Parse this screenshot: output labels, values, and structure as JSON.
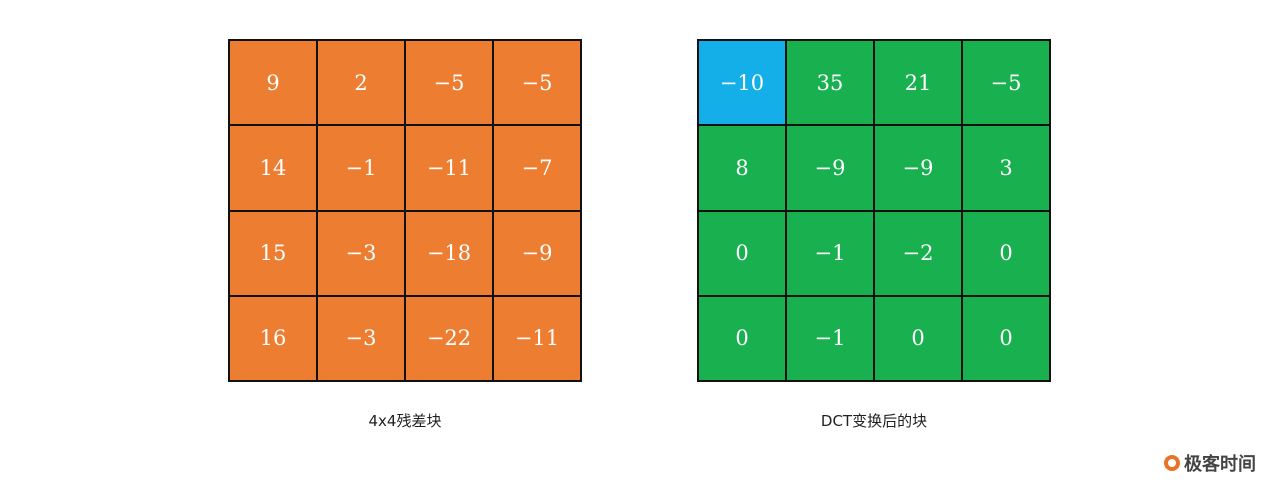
{
  "residual_block": {
    "caption": "4x4残差块",
    "color": "#ed7d31",
    "cells": [
      [
        "9",
        "2",
        "−5",
        "−5"
      ],
      [
        "14",
        "−1",
        "−11",
        "−7"
      ],
      [
        "15",
        "−3",
        "−18",
        "−9"
      ],
      [
        "16",
        "−3",
        "−22",
        "−11"
      ]
    ]
  },
  "dct_block": {
    "caption": "DCT变换后的块",
    "color": "#19b050",
    "dc_color": "#14aee8",
    "cells": [
      [
        "−10",
        "35",
        "21",
        "−5"
      ],
      [
        "8",
        "−9",
        "−9",
        "3"
      ],
      [
        "0",
        "−1",
        "−2",
        "0"
      ],
      [
        "0",
        "−1",
        "0",
        "0"
      ]
    ]
  },
  "logo": {
    "text": "极客时间"
  }
}
